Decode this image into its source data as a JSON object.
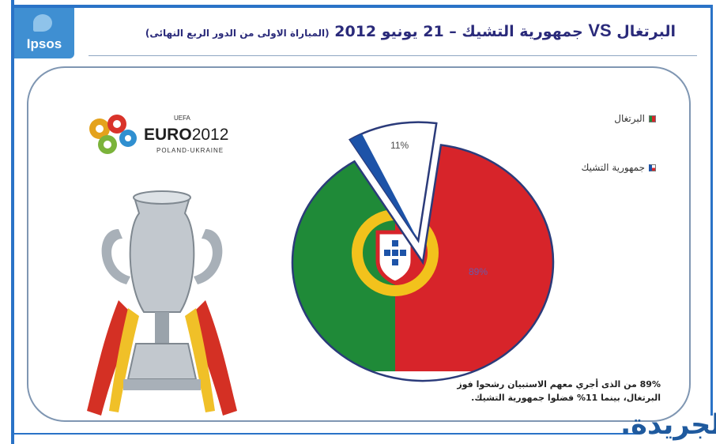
{
  "header": {
    "logo_text": "Ipsos",
    "title_main": "البرتغال",
    "title_vs": "VS",
    "title_rest": "جمهورية التشيك – 21 يونيو 2012",
    "title_sub": "(المباراة الاولى من الدور الربع النهائى)"
  },
  "euro_logo": {
    "word_bold": "EURO",
    "word_year": "2012",
    "uefa": "UEFA",
    "hosts": "POLAND-UKRAINE"
  },
  "chart_data": {
    "type": "pie",
    "categories": [
      "البرتغال",
      "جمهورية التشيك"
    ],
    "values": [
      89,
      11
    ],
    "labels": [
      "89%",
      "11%"
    ],
    "exploded": [
      false,
      true
    ],
    "legend_position": "right",
    "colors": {
      "portugal_red": "#d7242a",
      "portugal_green": "#1f8a38",
      "czech_blue": "#1d53a8",
      "czech_white": "#ffffff",
      "czech_red": "#d7242a"
    }
  },
  "caption": {
    "text": "89% من الذى أجري معهم الاستبيان رشحوا فوز البرتغال، بينما 11% فضلوا جمهورية التشيك."
  },
  "footer": {
    "brand": "الجريدة."
  },
  "theme": {
    "accent": "#2a73c7",
    "title_color": "#2a2a7a",
    "panel_border": "#7f96b2"
  }
}
